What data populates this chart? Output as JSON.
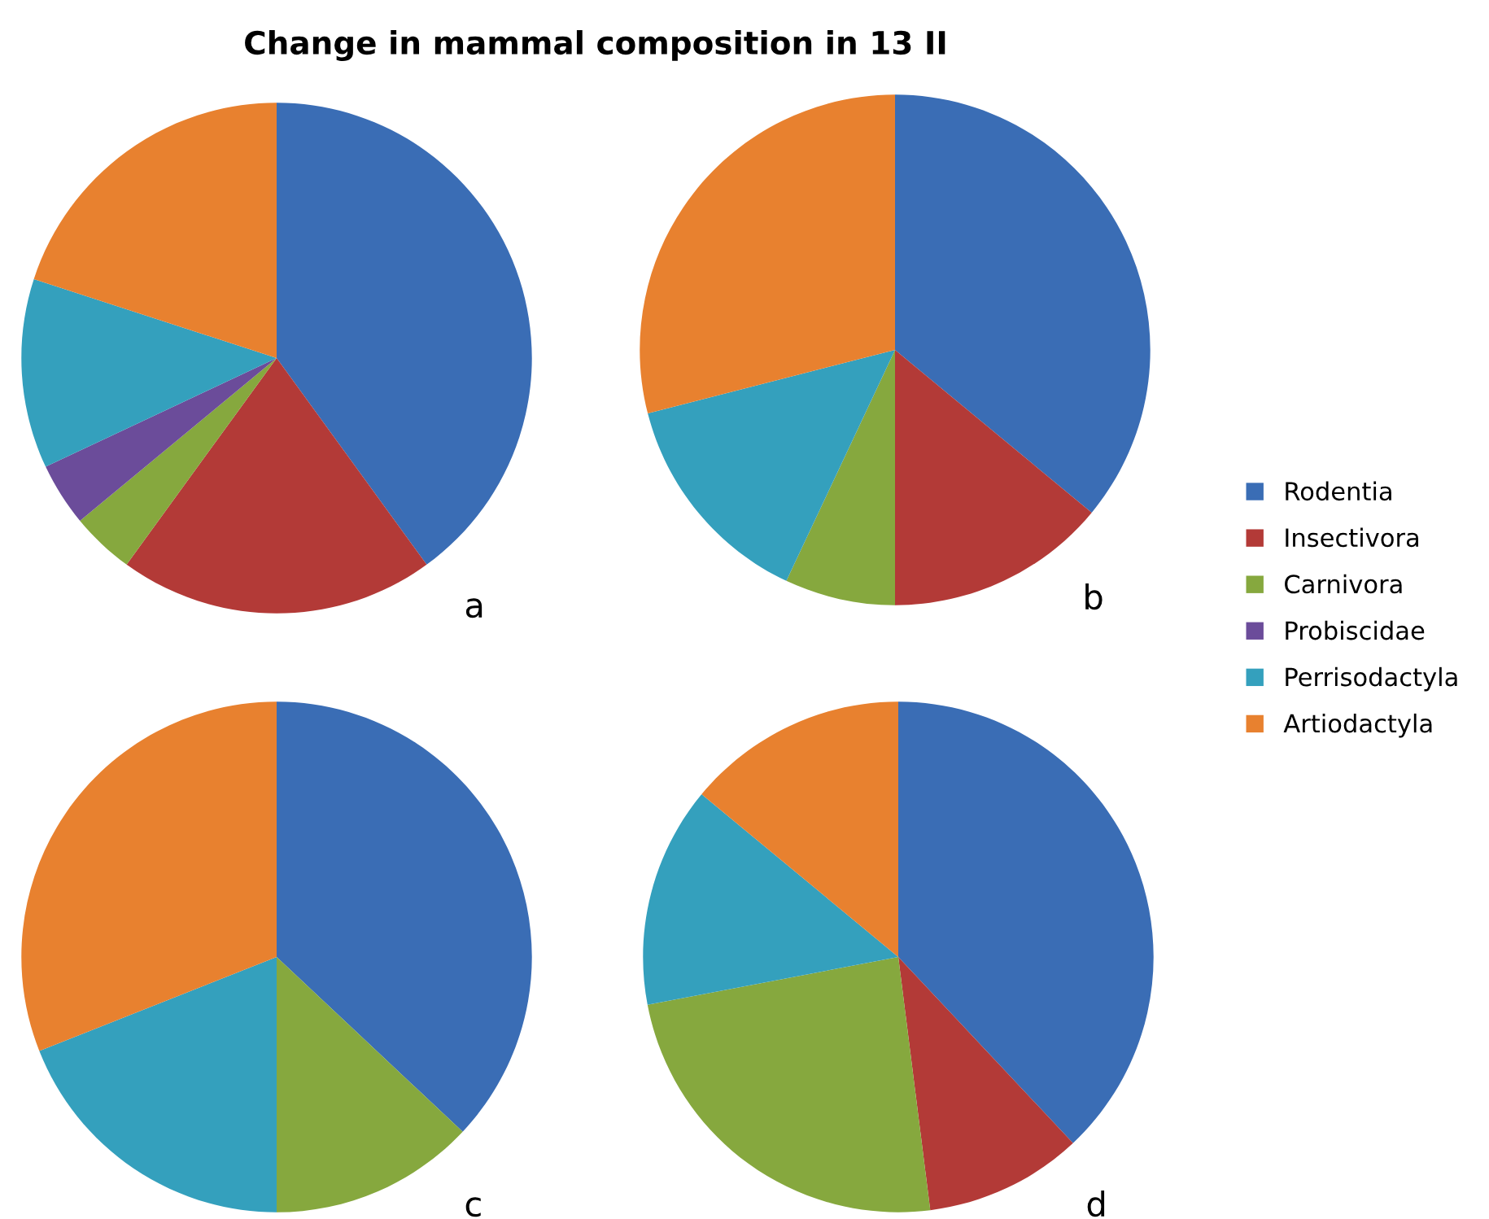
{
  "chart_data": [
    {
      "type": "pie",
      "title": "Change in mammal composition in 13 II",
      "categories": [
        "Rodentia",
        "Insectivora",
        "Carnivora",
        "Probiscidae",
        "Perrisodactyla",
        "Artiodactyla"
      ],
      "values": [
        40,
        20,
        4,
        4,
        12,
        20
      ],
      "colors": [
        "#3a6db5",
        "#b33a37",
        "#86a83e",
        "#6b4c9a",
        "#34a0bd",
        "#e8812f"
      ],
      "annotations": [
        "a"
      ],
      "legend": "right"
    },
    {
      "type": "pie",
      "categories": [
        null,
        null,
        null,
        null,
        null,
        null
      ],
      "values": [
        36,
        14,
        7,
        0,
        14,
        29
      ],
      "colors": [
        "#3a6db5",
        "#b33a37",
        "#86a83e",
        "#6b4c9a",
        "#34a0bd",
        "#e8812f"
      ],
      "annotations": [
        "b"
      ]
    },
    {
      "type": "pie",
      "categories": [
        null,
        null,
        null,
        null,
        null,
        null
      ],
      "values": [
        37,
        0,
        13,
        0,
        19,
        31
      ],
      "colors": [
        "#3a6db5",
        "#b33a37",
        "#86a83e",
        "#6b4c9a",
        "#34a0bd",
        "#e8812f"
      ],
      "annotations": [
        "c"
      ]
    },
    {
      "type": "pie",
      "categories": [
        null,
        null,
        null,
        null,
        null,
        null
      ],
      "values": [
        38,
        10,
        24,
        0,
        14,
        14
      ],
      "colors": [
        "#3a6db5",
        "#b33a37",
        "#86a83e",
        "#6b4c9a",
        "#34a0bd",
        "#e8812f"
      ],
      "annotations": [
        "d"
      ]
    }
  ]
}
